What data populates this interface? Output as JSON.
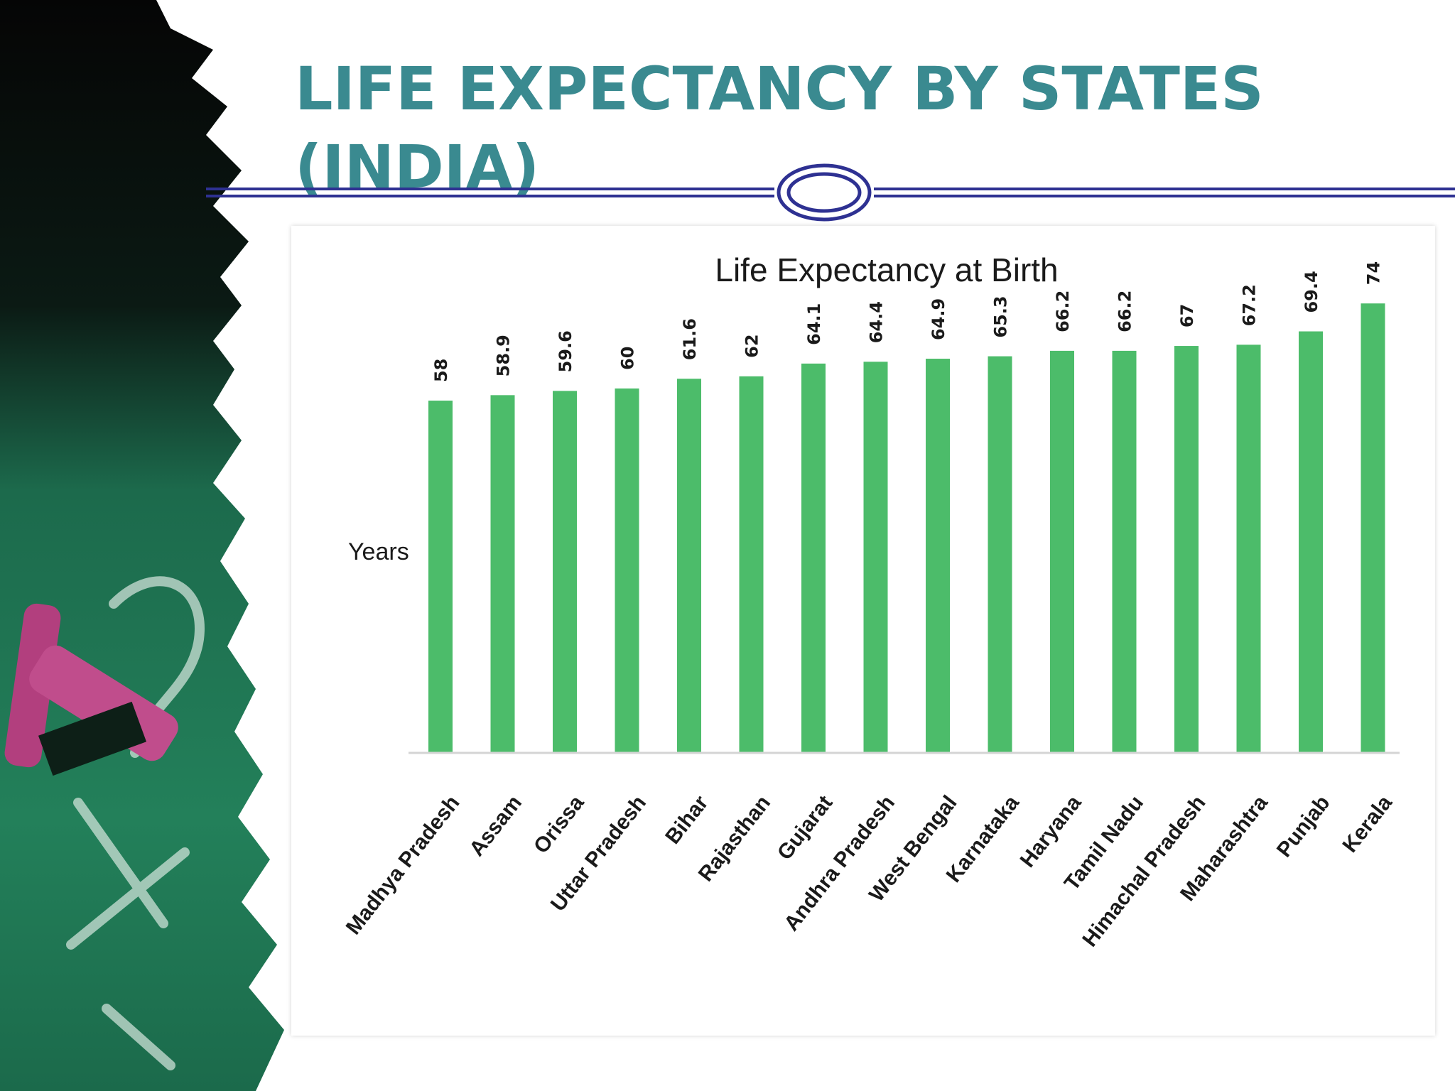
{
  "slide": {
    "title_line1": "LIFE EXPECTANCY BY STATES",
    "title_line2": "(INDIA)"
  },
  "colors": {
    "title": "#3a8a90",
    "rule": "#2e3192",
    "bar": "#4cbc6a",
    "chalkboard": "#1f6b4e",
    "chalk": "#b23f7e"
  },
  "chart_data": {
    "type": "bar",
    "title": "Life Expectancy at Birth",
    "ylabel": "Years",
    "xlabel": "",
    "categories": [
      "Madhya Pradesh",
      "Assam",
      "Orissa",
      "Uttar Pradesh",
      "Bihar",
      "Rajasthan",
      "Gujarat",
      "Andhra Pradesh",
      "West Bengal",
      "Karnataka",
      "Haryana",
      "Tamil Nadu",
      "Himachal Pradesh",
      "Maharashtra",
      "Punjab",
      "Kerala"
    ],
    "values": [
      58,
      58.9,
      59.6,
      60,
      61.6,
      62,
      64.1,
      64.4,
      64.9,
      65.3,
      66.2,
      66.2,
      67,
      67.2,
      69.4,
      74
    ],
    "data_labels": [
      "58",
      "58.9",
      "59.6",
      "60",
      "61.6",
      "62",
      "64.1",
      "64.4",
      "64.9",
      "65.3",
      "66.2",
      "66.2",
      "67",
      "67.2",
      "69.4",
      "74"
    ],
    "ylim": [
      0,
      78
    ],
    "grid": false,
    "legend": "none"
  }
}
